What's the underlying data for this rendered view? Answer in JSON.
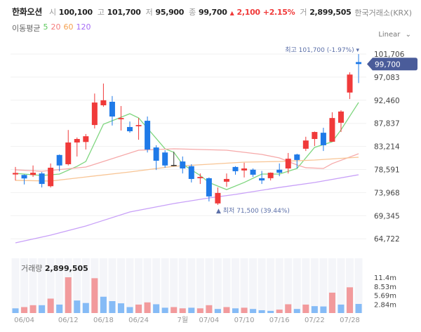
{
  "header": {
    "name": "한화오션",
    "open_label": "시",
    "open": "100,100",
    "high_label": "고",
    "high": "101,700",
    "low_label": "저",
    "low": "95,900",
    "close_label": "종",
    "close": "99,700",
    "change": "2,100",
    "change_pct": "+2.15%",
    "volume_label": "거",
    "volume": "2,899,505",
    "exchange": "한국거래소(KRX)"
  },
  "ma_legend": {
    "label": "이동평균",
    "items": [
      {
        "label": "5",
        "color": "#5cc85c"
      },
      {
        "label": "20",
        "color": "#f47c7c"
      },
      {
        "label": "60",
        "color": "#f5a04e"
      },
      {
        "label": "120",
        "color": "#a66cf5"
      }
    ]
  },
  "scale_selector": {
    "value": "Linear"
  },
  "colors": {
    "up": "#f03a3a",
    "down": "#1f7ae8",
    "vol_up": "#f29a9c",
    "vol_down": "#85bbf6",
    "price_tag": "#4a5c9a"
  },
  "chart_data": {
    "type": "candlestick",
    "dates": [
      "06/02",
      "06/04",
      "06/05",
      "06/09",
      "06/10",
      "06/11",
      "06/12",
      "06/13",
      "06/16",
      "06/17",
      "06/18",
      "06/19",
      "06/20",
      "06/23",
      "06/24",
      "06/25",
      "06/26",
      "06/27",
      "06/30",
      "07/01",
      "07/02",
      "07/03",
      "07/04",
      "07/07",
      "07/08",
      "07/09",
      "07/10",
      "07/11",
      "07/14",
      "07/15",
      "07/16",
      "07/17",
      "07/18",
      "07/21",
      "07/22",
      "07/23",
      "07/24",
      "07/25",
      "07/28",
      "07/29"
    ],
    "x_tick_labels": [
      {
        "date": "06/04",
        "label": "06/04"
      },
      {
        "date": "06/12",
        "label": "06/12"
      },
      {
        "date": "06/18",
        "label": "06/18"
      },
      {
        "date": "06/24",
        "label": "06/24"
      },
      {
        "date": "07/01",
        "label": "7월"
      },
      {
        "date": "07/04",
        "label": "07/04"
      },
      {
        "date": "07/10",
        "label": "07/10"
      },
      {
        "date": "07/16",
        "label": "07/16"
      },
      {
        "date": "07/22",
        "label": "07/22"
      },
      {
        "date": "07/28",
        "label": "07/28"
      }
    ],
    "ohlc": [
      [
        77600,
        79100,
        76400,
        77900
      ],
      [
        77500,
        77600,
        75600,
        76800
      ],
      [
        77500,
        79400,
        77100,
        77950
      ],
      [
        77800,
        78100,
        75000,
        75700
      ],
      [
        75250,
        79800,
        75000,
        78950
      ],
      [
        81500,
        81600,
        78250,
        79400
      ],
      [
        79650,
        86500,
        79400,
        84000
      ],
      [
        84000,
        85000,
        81200,
        84700
      ],
      [
        84100,
        85700,
        82600,
        85250
      ],
      [
        87500,
        93800,
        86800,
        92000
      ],
      [
        91450,
        95800,
        91150,
        92450
      ],
      [
        92150,
        93300,
        87400,
        89200
      ],
      [
        88650,
        91300,
        86400,
        88900
      ],
      [
        87100,
        88200,
        85950,
        86250
      ],
      [
        87250,
        88900,
        84550,
        87500
      ],
      [
        88350,
        89200,
        82000,
        82600
      ],
      [
        83000,
        83450,
        78500,
        80350
      ],
      [
        82000,
        82450,
        78950,
        79400
      ],
      [
        79500,
        82150,
        79250,
        79500
      ],
      [
        80200,
        81200,
        77800,
        78800
      ],
      [
        79250,
        79650,
        76000,
        76700
      ],
      [
        76850,
        77800,
        75700,
        77100
      ],
      [
        76850,
        77000,
        72200,
        73200
      ],
      [
        71800,
        75000,
        71500,
        73900
      ],
      [
        76150,
        77800,
        75150,
        76700
      ],
      [
        79100,
        79250,
        77550,
        78250
      ],
      [
        78400,
        79950,
        77000,
        78800
      ],
      [
        78550,
        78800,
        77100,
        77550
      ],
      [
        76850,
        78300,
        75700,
        76400
      ],
      [
        76850,
        78000,
        76400,
        77950
      ],
      [
        78550,
        79800,
        77250,
        77950
      ],
      [
        78800,
        81900,
        77800,
        80750
      ],
      [
        81600,
        81750,
        78800,
        80500
      ],
      [
        82750,
        85150,
        82300,
        84400
      ],
      [
        84700,
        86200,
        83300,
        86100
      ],
      [
        85950,
        86950,
        82300,
        83450
      ],
      [
        84150,
        90050,
        84150,
        88900
      ],
      [
        87950,
        90450,
        86100,
        90200
      ],
      [
        94000,
        98050,
        92700,
        97600
      ],
      [
        100100,
        101700,
        95900,
        99700
      ]
    ],
    "volume": [
      1.5,
      1.9,
      2.5,
      2.5,
      4.6,
      2.7,
      11.4,
      4.0,
      3.2,
      11.1,
      5.2,
      3.8,
      3.1,
      1.9,
      2.7,
      3.4,
      2.8,
      1.7,
      1.9,
      1.5,
      1.7,
      1.5,
      2.5,
      1.3,
      1.9,
      1.5,
      1.7,
      1.3,
      0.9,
      0.7,
      1.1,
      2.8,
      1.3,
      2.7,
      2.2,
      2.1,
      6.5,
      2.7,
      8.2,
      2.9
    ],
    "volume_up": [
      false,
      true,
      true,
      false,
      true,
      false,
      true,
      false,
      false,
      true,
      false,
      false,
      false,
      false,
      true,
      true,
      false,
      false,
      true,
      true,
      false,
      true,
      true,
      false,
      true,
      false,
      true,
      false,
      false,
      false,
      true,
      true,
      false,
      true,
      false,
      false,
      true,
      false,
      true,
      false
    ],
    "volume_unit": "m",
    "moving_averages": [
      {
        "name": "5",
        "color": "#7fd67f",
        "points": [
          [
            "06/02",
            77820
          ],
          [
            "06/09",
            77400
          ],
          [
            "06/11",
            77680
          ],
          [
            "06/13",
            79230
          ],
          [
            "06/16",
            80200
          ],
          [
            "06/18",
            87650
          ],
          [
            "06/23",
            89760
          ],
          [
            "06/24",
            88920
          ],
          [
            "06/27",
            82740
          ],
          [
            "06/30",
            82030
          ],
          [
            "07/01",
            79650
          ],
          [
            "07/03",
            77400
          ],
          [
            "07/04",
            76000
          ],
          [
            "07/07",
            75270
          ],
          [
            "07/08",
            74570
          ],
          [
            "07/10",
            76000
          ],
          [
            "07/14",
            77680
          ],
          [
            "07/16",
            77680
          ],
          [
            "07/18",
            78800
          ],
          [
            "07/22",
            83020
          ],
          [
            "07/24",
            84140
          ],
          [
            "07/25",
            86530
          ],
          [
            "07/29",
            92010
          ]
        ]
      },
      {
        "name": "20",
        "color": "#f6a9a9",
        "points": [
          [
            "06/02",
            78530
          ],
          [
            "06/09",
            78240
          ],
          [
            "06/16",
            79080
          ],
          [
            "06/24",
            82460
          ],
          [
            "06/30",
            82740
          ],
          [
            "07/03",
            82600
          ],
          [
            "07/08",
            82460
          ],
          [
            "07/14",
            81610
          ],
          [
            "07/16",
            80910
          ],
          [
            "07/18",
            79500
          ],
          [
            "07/21",
            78950
          ],
          [
            "07/23",
            78800
          ],
          [
            "07/24",
            79780
          ],
          [
            "07/29",
            81750
          ]
        ]
      },
      {
        "name": "60",
        "color": "#f8c595",
        "points": [
          [
            "06/02",
            76420
          ],
          [
            "06/10",
            76280
          ],
          [
            "06/16",
            77100
          ],
          [
            "06/23",
            78100
          ],
          [
            "06/30",
            79230
          ],
          [
            "07/04",
            79650
          ],
          [
            "07/10",
            80070
          ],
          [
            "07/16",
            80200
          ],
          [
            "07/22",
            80490
          ],
          [
            "07/29",
            81050
          ]
        ]
      },
      {
        "name": "120",
        "color": "#c8a0f8",
        "points": [
          [
            "06/02",
            63910
          ],
          [
            "06/10",
            65460
          ],
          [
            "06/16",
            67280
          ],
          [
            "06/23",
            70090
          ],
          [
            "06/30",
            71780
          ],
          [
            "07/04",
            72900
          ],
          [
            "07/09",
            73600
          ],
          [
            "07/16",
            75000
          ],
          [
            "07/22",
            75990
          ],
          [
            "07/29",
            77540
          ]
        ]
      }
    ],
    "y_ticks": [
      "101,706",
      "97,083",
      "92,460",
      "87,837",
      "83,214",
      "78,591",
      "73,968",
      "69,345",
      "64,722"
    ],
    "y_tick_values": [
      101706,
      97083,
      92460,
      87837,
      83214,
      78591,
      73968,
      69345,
      64722
    ],
    "volume_ticks": [
      {
        "label": "11.4m",
        "value": 11.4
      },
      {
        "label": "8.53m",
        "value": 8.53
      },
      {
        "label": "5.69m",
        "value": 5.69
      },
      {
        "label": "2.84m",
        "value": 2.84
      }
    ],
    "last_price_tag": "99,700",
    "high_annotation": "최고 101,700 (-1.97%) ▾",
    "low_annotation": "▲ 최저 71,500 (39.44%)",
    "volume_title": "거래량",
    "volume_value": "2,899,505",
    "grid": true
  }
}
